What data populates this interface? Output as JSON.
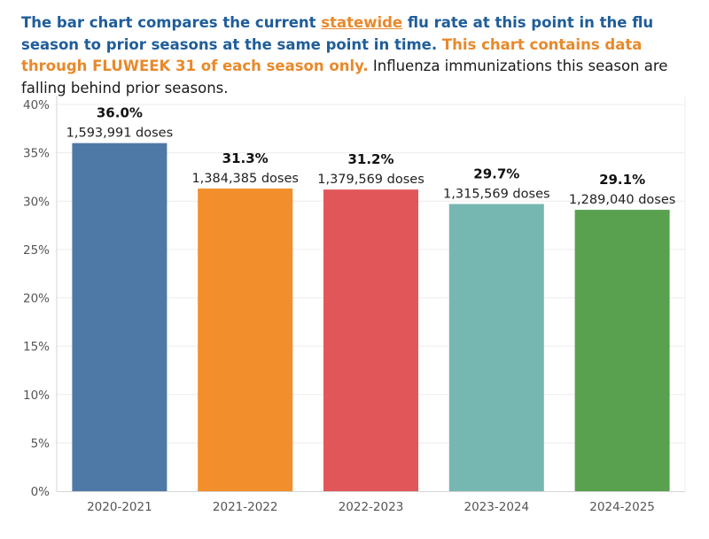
{
  "intro": {
    "part1": "The bar chart compares the current ",
    "link": "statewide",
    "part2": " flu rate at this point in the flu season to prior seasons at the same point in time. ",
    "highlight": "This chart contains data through FLUWEEK 31 of each season only.",
    "part3": " Influenza immunizations this season are falling behind prior seasons."
  },
  "chart_data": {
    "type": "bar",
    "categories": [
      "2020-2021",
      "2021-2022",
      "2022-2023",
      "2023-2024",
      "2024-2025"
    ],
    "values": [
      36.0,
      31.3,
      31.2,
      29.7,
      29.1
    ],
    "value_labels": [
      "36.0%",
      "31.3%",
      "31.2%",
      "29.7%",
      "29.1%"
    ],
    "doses": [
      "1,593,991 doses",
      "1,384,385 doses",
      "1,379,569 doses",
      "1,315,569 doses",
      "1,289,040 doses"
    ],
    "colors": [
      "#4e79a7",
      "#f28e2b",
      "#e15759",
      "#76b7b2",
      "#59a14f"
    ],
    "ylim": [
      0,
      40
    ],
    "yticks": [
      0,
      5,
      10,
      15,
      20,
      25,
      30,
      35,
      40
    ],
    "ytick_labels": [
      "0%",
      "5%",
      "10%",
      "15%",
      "20%",
      "25%",
      "30%",
      "35%",
      "40%"
    ],
    "grid": true,
    "title": "",
    "xlabel": "",
    "ylabel": ""
  }
}
